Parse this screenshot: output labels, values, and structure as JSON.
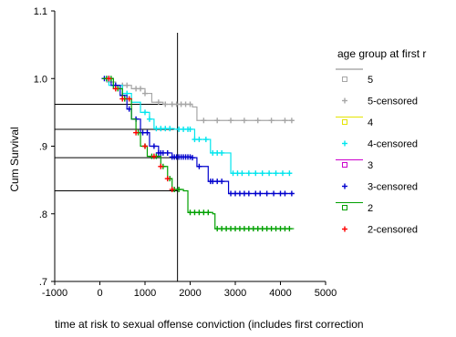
{
  "chart_data": {
    "type": "line",
    "ylabel": "Cum Survival",
    "xlabel": "time at risk to sexual offense conviction (includes first correction",
    "xlim": [
      -1000,
      5000
    ],
    "ylim": [
      0.7,
      1.1
    ],
    "xticks": [
      "-1000",
      "0",
      "1000",
      "2000",
      "3000",
      "4000",
      "5000"
    ],
    "yticks": [
      "1.1",
      "1.0",
      ".9",
      ".8",
      ".7"
    ],
    "legend_title": "age group at first r",
    "legend_position": "right",
    "legend_entries": [
      "5",
      "5-censored",
      "4",
      "4-censored",
      "3",
      "3-censored",
      "2",
      "2-censored"
    ],
    "reference_lines": {
      "vertical_x": 1720,
      "horizontal_y": [
        0.962,
        0.925,
        0.883,
        0.834
      ]
    },
    "series": [
      {
        "name": "5",
        "color": "#a6a6a6",
        "steps": [
          [
            50,
            1.0
          ],
          [
            150,
            0.995
          ],
          [
            350,
            0.99
          ],
          [
            700,
            0.985
          ],
          [
            1000,
            0.978
          ],
          [
            1150,
            0.965
          ],
          [
            1400,
            0.962
          ],
          [
            2050,
            0.958
          ],
          [
            2150,
            0.938
          ],
          [
            4300,
            0.938
          ]
        ],
        "censored": [
          500,
          600,
          800,
          900,
          1000,
          1300,
          1450,
          1600,
          1700,
          1800,
          1900,
          2000,
          2300,
          2600,
          2900,
          3200,
          3500,
          3800,
          4100,
          4250
        ]
      },
      {
        "name": "4",
        "color": "#00e5ee",
        "steps": [
          [
            50,
            1.0
          ],
          [
            200,
            0.99
          ],
          [
            500,
            0.978
          ],
          [
            700,
            0.965
          ],
          [
            900,
            0.95
          ],
          [
            1100,
            0.94
          ],
          [
            1200,
            0.926
          ],
          [
            1650,
            0.925
          ],
          [
            2100,
            0.91
          ],
          [
            2450,
            0.89
          ],
          [
            2800,
            0.89
          ],
          [
            2900,
            0.86
          ],
          [
            4250,
            0.86
          ]
        ],
        "censored": [
          150,
          300,
          600,
          1000,
          1100,
          1250,
          1350,
          1450,
          1550,
          1750,
          1850,
          1950,
          2000,
          2100,
          2200,
          2350,
          2500,
          2600,
          2700,
          2950,
          3050,
          3150,
          3300,
          3450,
          3600,
          3750,
          3900,
          4050,
          4200
        ]
      },
      {
        "name": "3",
        "color": "#0000cd",
        "steps": [
          [
            50,
            1.0
          ],
          [
            250,
            0.99
          ],
          [
            450,
            0.975
          ],
          [
            600,
            0.955
          ],
          [
            700,
            0.94
          ],
          [
            900,
            0.92
          ],
          [
            1100,
            0.9
          ],
          [
            1300,
            0.89
          ],
          [
            1600,
            0.884
          ],
          [
            2050,
            0.883
          ],
          [
            2150,
            0.87
          ],
          [
            2400,
            0.848
          ],
          [
            2750,
            0.848
          ],
          [
            2850,
            0.83
          ],
          [
            4300,
            0.83
          ]
        ],
        "censored": [
          100,
          200,
          350,
          500,
          650,
          800,
          950,
          1050,
          1200,
          1300,
          1350,
          1400,
          1500,
          1600,
          1650,
          1700,
          1750,
          1800,
          1850,
          1900,
          1950,
          2000,
          2050,
          2200,
          2450,
          2500,
          2600,
          2700,
          2900,
          3000,
          3100,
          3200,
          3300,
          3450,
          3550,
          3700,
          3850,
          4000,
          4100,
          4250
        ]
      },
      {
        "name": "2",
        "color": "#00a000",
        "steps": [
          [
            50,
            1.0
          ],
          [
            300,
            0.985
          ],
          [
            500,
            0.97
          ],
          [
            700,
            0.94
          ],
          [
            800,
            0.92
          ],
          [
            900,
            0.9
          ],
          [
            1050,
            0.885
          ],
          [
            1350,
            0.87
          ],
          [
            1500,
            0.852
          ],
          [
            1600,
            0.836
          ],
          [
            1850,
            0.834
          ],
          [
            1950,
            0.802
          ],
          [
            2500,
            0.8
          ],
          [
            2550,
            0.778
          ],
          [
            4300,
            0.778
          ]
        ],
        "censored": [
          150,
          250,
          400,
          550,
          850,
          1000,
          1150,
          1250,
          1400,
          1550,
          1650,
          1750,
          2000,
          2100,
          2200,
          2300,
          2400,
          2600,
          2700,
          2800,
          2900,
          3000,
          3100,
          3200,
          3300,
          3400,
          3500,
          3600,
          3700,
          3800,
          3900,
          4000,
          4100,
          4200
        ]
      },
      {
        "name": "2-red",
        "color": "#ff0000",
        "steps": [],
        "censored": [
          200,
          350,
          500,
          650,
          800,
          1000,
          1200,
          1350,
          1500,
          1600
        ]
      }
    ]
  }
}
